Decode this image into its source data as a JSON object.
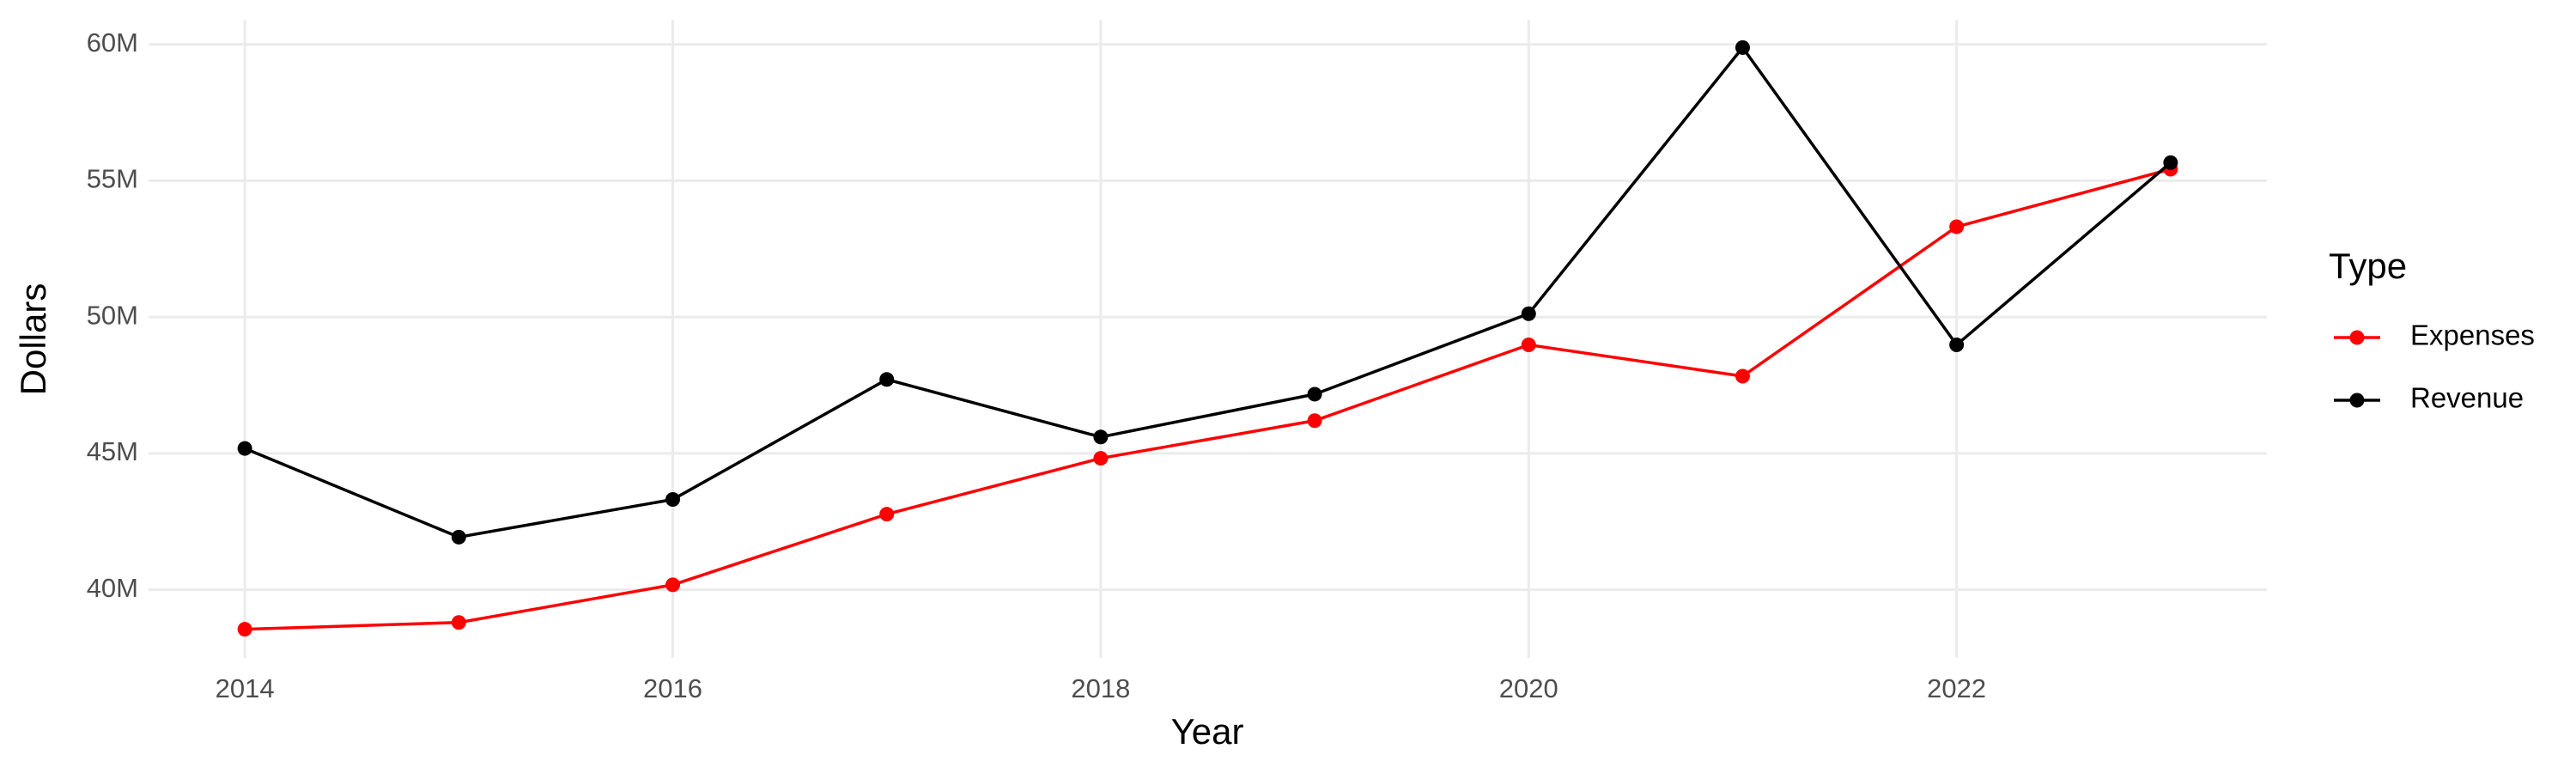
{
  "chart_data": {
    "type": "line",
    "x_label": "Year",
    "y_label": "Dollars",
    "x": [
      2014,
      2015,
      2016,
      2017,
      2018,
      2019,
      2020,
      2021,
      2022,
      2023
    ],
    "series": [
      {
        "name": "Expenses",
        "color": "#ff0000",
        "values": [
          38550000,
          38800000,
          40180000,
          42770000,
          44820000,
          46200000,
          48980000,
          47830000,
          53310000,
          55420000
        ]
      },
      {
        "name": "Revenue",
        "color": "#000000",
        "values": [
          45180000,
          41930000,
          43310000,
          47710000,
          45600000,
          47170000,
          50120000,
          59880000,
          48980000,
          55660000
        ]
      }
    ],
    "xlim": [
      2013.55,
      2023.45
    ],
    "xticks": [
      2014,
      2016,
      2018,
      2020,
      2022
    ],
    "ylim": [
      37500000,
      60900000
    ],
    "yticks": [
      {
        "value": 40000000,
        "label": "40M"
      },
      {
        "value": 45000000,
        "label": "45M"
      },
      {
        "value": 50000000,
        "label": "50M"
      },
      {
        "value": 55000000,
        "label": "55M"
      },
      {
        "value": 60000000,
        "label": "60M"
      }
    ],
    "grid": true,
    "legend_title": "Type",
    "legend_position": "right"
  }
}
